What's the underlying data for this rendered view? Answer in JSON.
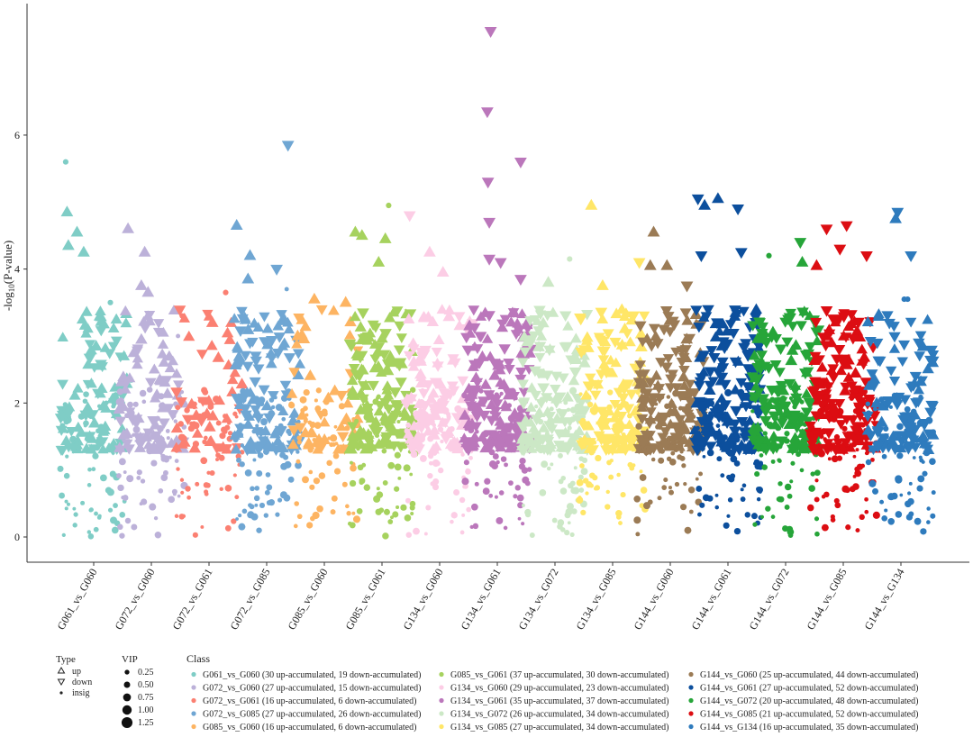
{
  "chart_data": {
    "type": "scatter",
    "ylabel": "-log10(P-value)",
    "ylabel_parts": {
      "pre": "-log",
      "sub": "10",
      "post": "(P-value)"
    },
    "ylim": [
      0,
      7.6
    ],
    "yticks": [
      0,
      2,
      4,
      6
    ],
    "grid": false,
    "legend_position": "bottom",
    "categories": [
      "G061_vs_G060",
      "G072_vs_G060",
      "G072_vs_G061",
      "G072_vs_G085",
      "G085_vs_G060",
      "G085_vs_G061",
      "G134_vs_G060",
      "G134_vs_G061",
      "G134_vs_G072",
      "G134_vs_G085",
      "G144_vs_G060",
      "G144_vs_G061",
      "G144_vs_G072",
      "G144_vs_G085",
      "G144_vs_G134"
    ],
    "colors": [
      "#7fcdc6",
      "#bcb1d9",
      "#fb8072",
      "#6fa6d3",
      "#fdb462",
      "#a6d25e",
      "#fccde5",
      "#bb77bb",
      "#cce8c6",
      "#ffe667",
      "#9b7b55",
      "#0c4f9d",
      "#26a539",
      "#dc0d12",
      "#2e7bbd"
    ],
    "series": [
      {
        "name": "G061_vs_G060",
        "up": 30,
        "down": 19,
        "legend_label": "G061_vs_G060 (30 up-accumulated, 19 down-accumulated)",
        "highlights": [
          {
            "x": 0.08,
            "y": 5.6,
            "type": "insig",
            "vip": 0.75
          },
          {
            "x": 0.1,
            "y": 4.85,
            "type": "up",
            "vip": 1.25
          },
          {
            "x": 0.12,
            "y": 4.35,
            "type": "up",
            "vip": 1.25
          },
          {
            "x": 0.25,
            "y": 4.55,
            "type": "up",
            "vip": 1.25
          },
          {
            "x": 0.35,
            "y": 4.25,
            "type": "up",
            "vip": 1.25
          },
          {
            "x": 0.75,
            "y": 3.5,
            "type": "insig",
            "vip": 0.75
          }
        ]
      },
      {
        "name": "G072_vs_G060",
        "up": 27,
        "down": 15,
        "legend_label": "G072_vs_G060 (27 up-accumulated, 15 down-accumulated)",
        "highlights": [
          {
            "x": 0.15,
            "y": 4.6,
            "type": "up",
            "vip": 1.25
          },
          {
            "x": 0.4,
            "y": 4.25,
            "type": "up",
            "vip": 1.25
          },
          {
            "x": 0.35,
            "y": 3.75,
            "type": "up",
            "vip": 1.25
          },
          {
            "x": 0.45,
            "y": 3.65,
            "type": "up",
            "vip": 1.25
          },
          {
            "x": 0.9,
            "y": 3.0,
            "type": "insig",
            "vip": 0.5
          }
        ]
      },
      {
        "name": "G072_vs_G061",
        "up": 16,
        "down": 6,
        "legend_label": "G072_vs_G061 (16 up-accumulated, 6 down-accumulated)",
        "highlights": [
          {
            "x": 0.75,
            "y": 3.65,
            "type": "insig",
            "vip": 0.75
          },
          {
            "x": 0.55,
            "y": 3.2,
            "type": "up",
            "vip": 1.25
          },
          {
            "x": 0.1,
            "y": 3.3,
            "type": "insig",
            "vip": 0.75
          }
        ]
      },
      {
        "name": "G072_vs_G085",
        "up": 27,
        "down": 26,
        "legend_label": "G072_vs_G085 (27 up-accumulated, 26 down-accumulated)",
        "highlights": [
          {
            "x": 0.82,
            "y": 5.85,
            "type": "down",
            "vip": 1.25
          },
          {
            "x": 0.05,
            "y": 4.65,
            "type": "up",
            "vip": 1.25
          },
          {
            "x": 0.25,
            "y": 4.2,
            "type": "up",
            "vip": 1.25
          },
          {
            "x": 0.22,
            "y": 3.85,
            "type": "up",
            "vip": 1.25
          },
          {
            "x": 0.65,
            "y": 4.0,
            "type": "down",
            "vip": 1.25
          },
          {
            "x": 0.8,
            "y": 3.7,
            "type": "insig",
            "vip": 0.5
          }
        ]
      },
      {
        "name": "G085_vs_G060",
        "up": 16,
        "down": 6,
        "legend_label": "G085_vs_G060 (16 up-accumulated, 6 down-accumulated)",
        "highlights": [
          {
            "x": 0.35,
            "y": 3.55,
            "type": "up",
            "vip": 1.25
          },
          {
            "x": 0.82,
            "y": 3.5,
            "type": "up",
            "vip": 1.25
          },
          {
            "x": 0.1,
            "y": 3.0,
            "type": "up",
            "vip": 1.25
          }
        ]
      },
      {
        "name": "G085_vs_G061",
        "up": 37,
        "down": 30,
        "legend_label": "G085_vs_G061 (37 up-accumulated, 30 down-accumulated)",
        "highlights": [
          {
            "x": 0.6,
            "y": 4.95,
            "type": "insig",
            "vip": 0.75
          },
          {
            "x": 0.1,
            "y": 4.55,
            "type": "up",
            "vip": 1.25
          },
          {
            "x": 0.2,
            "y": 4.5,
            "type": "up",
            "vip": 1.25
          },
          {
            "x": 0.55,
            "y": 4.45,
            "type": "up",
            "vip": 1.25
          },
          {
            "x": 0.45,
            "y": 4.1,
            "type": "up",
            "vip": 1.25
          }
        ]
      },
      {
        "name": "G134_vs_G060",
        "up": 29,
        "down": 23,
        "legend_label": "G134_vs_G060 (29 up-accumulated, 23 down-accumulated)",
        "highlights": [
          {
            "x": 0.05,
            "y": 4.8,
            "type": "down",
            "vip": 1.25
          },
          {
            "x": 0.35,
            "y": 4.25,
            "type": "up",
            "vip": 1.25
          },
          {
            "x": 0.55,
            "y": 3.95,
            "type": "up",
            "vip": 1.25
          }
        ]
      },
      {
        "name": "G134_vs_G061",
        "up": 35,
        "down": 37,
        "legend_label": "G134_vs_G061 (35 up-accumulated, 37 down-accumulated)",
        "highlights": [
          {
            "x": 0.4,
            "y": 7.55,
            "type": "down",
            "vip": 1.25
          },
          {
            "x": 0.35,
            "y": 6.35,
            "type": "down",
            "vip": 1.25
          },
          {
            "x": 0.36,
            "y": 5.3,
            "type": "down",
            "vip": 1.25
          },
          {
            "x": 0.85,
            "y": 5.6,
            "type": "down",
            "vip": 1.25
          },
          {
            "x": 0.38,
            "y": 4.7,
            "type": "down",
            "vip": 1.25
          },
          {
            "x": 0.38,
            "y": 4.15,
            "type": "down",
            "vip": 1.25
          },
          {
            "x": 0.55,
            "y": 4.1,
            "type": "down",
            "vip": 1.25
          },
          {
            "x": 0.85,
            "y": 3.85,
            "type": "down",
            "vip": 1.25
          }
        ]
      },
      {
        "name": "G134_vs_G072",
        "up": 26,
        "down": 34,
        "legend_label": "G134_vs_G072 (26 up-accumulated, 34 down-accumulated)",
        "highlights": [
          {
            "x": 0.72,
            "y": 4.15,
            "type": "insig",
            "vip": 0.75
          },
          {
            "x": 0.4,
            "y": 3.8,
            "type": "up",
            "vip": 1.25
          }
        ]
      },
      {
        "name": "G134_vs_G085",
        "up": 27,
        "down": 34,
        "legend_label": "G134_vs_G085 (27 up-accumulated, 34 down-accumulated)",
        "highlights": [
          {
            "x": 0.18,
            "y": 4.95,
            "type": "up",
            "vip": 1.25
          },
          {
            "x": 0.9,
            "y": 4.1,
            "type": "down",
            "vip": 1.25
          },
          {
            "x": 0.35,
            "y": 3.75,
            "type": "up",
            "vip": 1.25
          }
        ]
      },
      {
        "name": "G144_vs_G060",
        "up": 25,
        "down": 44,
        "legend_label": "G144_vs_G060 (25 up-accumulated, 44 down-accumulated)",
        "highlights": [
          {
            "x": 0.25,
            "y": 4.55,
            "type": "up",
            "vip": 1.25
          },
          {
            "x": 0.2,
            "y": 4.05,
            "type": "up",
            "vip": 1.25
          },
          {
            "x": 0.45,
            "y": 4.05,
            "type": "up",
            "vip": 1.25
          },
          {
            "x": 0.75,
            "y": 3.75,
            "type": "down",
            "vip": 1.25
          }
        ]
      },
      {
        "name": "G144_vs_G061",
        "up": 27,
        "down": 52,
        "legend_label": "G144_vs_G061 (27 up-accumulated, 52 down-accumulated)",
        "highlights": [
          {
            "x": 0.05,
            "y": 5.05,
            "type": "down",
            "vip": 1.25
          },
          {
            "x": 0.15,
            "y": 4.95,
            "type": "up",
            "vip": 1.25
          },
          {
            "x": 0.35,
            "y": 5.05,
            "type": "up",
            "vip": 1.25
          },
          {
            "x": 0.65,
            "y": 4.9,
            "type": "down",
            "vip": 1.25
          },
          {
            "x": 0.1,
            "y": 4.2,
            "type": "down",
            "vip": 1.25
          },
          {
            "x": 0.7,
            "y": 4.25,
            "type": "down",
            "vip": 1.25
          }
        ]
      },
      {
        "name": "G144_vs_G072",
        "up": 20,
        "down": 48,
        "legend_label": "G144_vs_G072 (20 up-accumulated, 48 down-accumulated)",
        "highlights": [
          {
            "x": 0.25,
            "y": 4.2,
            "type": "insig",
            "vip": 0.75
          },
          {
            "x": 0.72,
            "y": 4.4,
            "type": "down",
            "vip": 1.25
          },
          {
            "x": 0.75,
            "y": 4.1,
            "type": "up",
            "vip": 1.25
          }
        ]
      },
      {
        "name": "G144_vs_G085",
        "up": 21,
        "down": 52,
        "legend_label": "G144_vs_G085 (21 up-accumulated, 52 down-accumulated)",
        "highlights": [
          {
            "x": 0.25,
            "y": 4.6,
            "type": "down",
            "vip": 1.25
          },
          {
            "x": 0.55,
            "y": 4.65,
            "type": "down",
            "vip": 1.25
          },
          {
            "x": 0.45,
            "y": 4.3,
            "type": "down",
            "vip": 1.25
          },
          {
            "x": 0.1,
            "y": 4.05,
            "type": "up",
            "vip": 1.25
          },
          {
            "x": 0.85,
            "y": 4.2,
            "type": "down",
            "vip": 1.25
          }
        ]
      },
      {
        "name": "G144_vs_G134",
        "up": 16,
        "down": 35,
        "legend_label": "G144_vs_G134 (16 up-accumulated, 35 down-accumulated)",
        "highlights": [
          {
            "x": 0.45,
            "y": 4.85,
            "type": "down",
            "vip": 1.25
          },
          {
            "x": 0.42,
            "y": 4.75,
            "type": "up",
            "vip": 1.25
          },
          {
            "x": 0.65,
            "y": 4.2,
            "type": "down",
            "vip": 1.25
          },
          {
            "x": 0.55,
            "y": 3.55,
            "type": "insig",
            "vip": 0.75
          },
          {
            "x": 0.6,
            "y": 3.55,
            "type": "insig",
            "vip": 0.75
          }
        ]
      }
    ],
    "legend": {
      "type_title": "Type",
      "type_items": [
        {
          "label": "up",
          "type": "up"
        },
        {
          "label": "down",
          "type": "down"
        },
        {
          "label": "insig",
          "type": "insig"
        }
      ],
      "vip_title": "VIP",
      "vip_items": [
        {
          "label": "0.25",
          "value": 0.25
        },
        {
          "label": "0.50",
          "value": 0.5
        },
        {
          "label": "0.75",
          "value": 0.75
        },
        {
          "label": "1.00",
          "value": 1.0
        },
        {
          "label": "1.25",
          "value": 1.25
        }
      ],
      "class_title": "Class"
    }
  }
}
